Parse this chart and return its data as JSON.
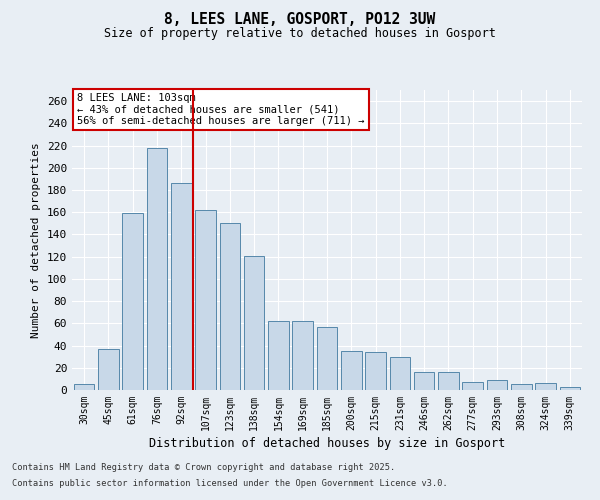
{
  "title1": "8, LEES LANE, GOSPORT, PO12 3UW",
  "title2": "Size of property relative to detached houses in Gosport",
  "xlabel": "Distribution of detached houses by size in Gosport",
  "ylabel": "Number of detached properties",
  "categories": [
    "30sqm",
    "45sqm",
    "61sqm",
    "76sqm",
    "92sqm",
    "107sqm",
    "123sqm",
    "138sqm",
    "154sqm",
    "169sqm",
    "185sqm",
    "200sqm",
    "215sqm",
    "231sqm",
    "246sqm",
    "262sqm",
    "277sqm",
    "293sqm",
    "308sqm",
    "324sqm",
    "339sqm"
  ],
  "values": [
    5,
    37,
    159,
    218,
    186,
    162,
    150,
    121,
    62,
    62,
    57,
    35,
    34,
    30,
    16,
    16,
    7,
    9,
    5,
    6,
    3
  ],
  "bar_color": "#c8d8e8",
  "bar_edge_color": "#5588aa",
  "vline_color": "#cc0000",
  "annotation_title": "8 LEES LANE: 103sqm",
  "annotation_line1": "← 43% of detached houses are smaller (541)",
  "annotation_line2": "56% of semi-detached houses are larger (711) →",
  "annotation_box_color": "#cc0000",
  "footer1": "Contains HM Land Registry data © Crown copyright and database right 2025.",
  "footer2": "Contains public sector information licensed under the Open Government Licence v3.0.",
  "background_color": "#e8eef4",
  "grid_color": "#ffffff",
  "ylim": [
    0,
    270
  ],
  "yticks": [
    0,
    20,
    40,
    60,
    80,
    100,
    120,
    140,
    160,
    180,
    200,
    220,
    240,
    260
  ],
  "vline_index": 4.5
}
